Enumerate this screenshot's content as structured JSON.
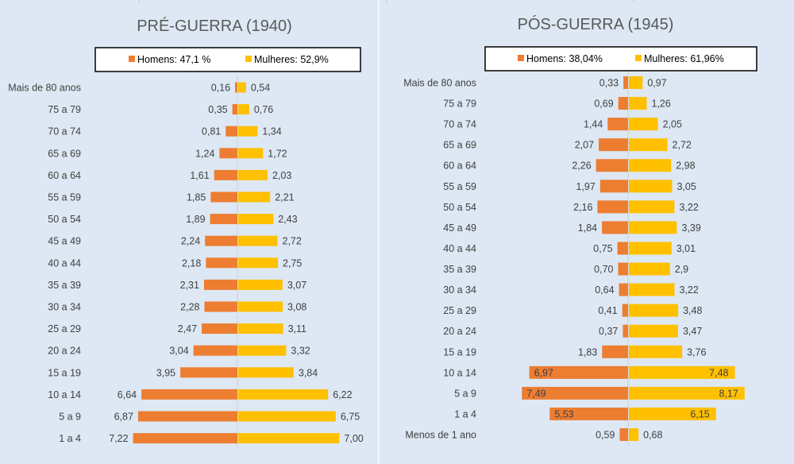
{
  "colors": {
    "men": "#ed7d31",
    "women": "#ffc000",
    "background": "#dde8f4",
    "axis": "#d0d0d0"
  },
  "chart_data": [
    {
      "type": "bar",
      "orientation": "horizontal-pyramid",
      "title": "PRÉ-GUERRA (1940)",
      "legend_position": "top",
      "grid": false,
      "categories": [
        "Mais de 80 anos",
        "75 a 79",
        "70 a 74",
        "65 a 69",
        "60 a 64",
        "55 a 59",
        "50 a 54",
        "45 a 49",
        "40 a 44",
        "35 a 39",
        "30 a 34",
        "25 a 29",
        "20 a 24",
        "15 a 19",
        "10 a 14",
        "5 a 9",
        "1 a 4"
      ],
      "series": [
        {
          "name": "Homens: 47,1 %",
          "values": [
            0.16,
            0.35,
            0.81,
            1.24,
            1.61,
            1.85,
            1.89,
            2.24,
            2.18,
            2.31,
            2.28,
            2.47,
            3.04,
            3.95,
            6.64,
            6.87,
            7.22
          ],
          "labels": [
            "0,16",
            "0,35",
            "0,81",
            "1,24",
            "1,61",
            "1,85",
            "1,89",
            "2,24",
            "2,18",
            "2,31",
            "2,28",
            "2,47",
            "3,04",
            "3,95",
            "6,64",
            "6,87",
            "7,22"
          ]
        },
        {
          "name": "Mulheres: 52,9%",
          "values": [
            0.54,
            0.76,
            1.34,
            1.72,
            2.03,
            2.21,
            2.43,
            2.72,
            2.75,
            3.07,
            3.08,
            3.11,
            3.32,
            3.84,
            6.22,
            6.75,
            7.0
          ],
          "labels": [
            "0,54",
            "0,76",
            "1,34",
            "1,72",
            "2,03",
            "2,21",
            "2,43",
            "2,72",
            "2,75",
            "3,07",
            "3,08",
            "3,11",
            "3,32",
            "3,84",
            "6,22",
            "6,75",
            "7,00"
          ]
        }
      ]
    },
    {
      "type": "bar",
      "orientation": "horizontal-pyramid",
      "title": "PÓS-GUERRA (1945)",
      "legend_position": "top",
      "grid": false,
      "categories": [
        "Mais de 80 anos",
        "75 a 79",
        "70 a 74",
        "65 a 69",
        "60 a 64",
        "55 a 59",
        "50 a 54",
        "45 a 49",
        "40 a 44",
        "35 a 39",
        "30 a 34",
        "25 a 29",
        "20 a 24",
        "15 a 19",
        "10 a 14",
        "5 a 9",
        "1 a 4",
        "Menos de 1 ano"
      ],
      "series": [
        {
          "name": "Homens: 38,04%",
          "values": [
            0.33,
            0.69,
            1.44,
            2.07,
            2.26,
            1.97,
            2.16,
            1.84,
            0.75,
            0.7,
            0.64,
            0.41,
            0.37,
            1.83,
            6.97,
            7.49,
            5.53,
            0.59
          ],
          "labels": [
            "0,33",
            "0,69",
            "1,44",
            "2,07",
            "2,26",
            "1,97",
            "2,16",
            "1,84",
            "0,75",
            "0,70",
            "0,64",
            "0,41",
            "0,37",
            "1,83",
            "6,97",
            "7,49",
            "5,53",
            "0,59"
          ]
        },
        {
          "name": "Mulheres: 61,96%",
          "values": [
            0.97,
            1.26,
            2.05,
            2.72,
            2.98,
            3.05,
            3.22,
            3.39,
            3.01,
            2.9,
            3.22,
            3.48,
            3.47,
            3.76,
            7.48,
            8.17,
            6.15,
            0.68
          ],
          "labels": [
            "0,97",
            "1,26",
            "2,05",
            "2,72",
            "2,98",
            "3,05",
            "3,22",
            "3,39",
            "3,01",
            "2,9",
            "3,22",
            "3,48",
            "3,47",
            "3,76",
            "7,48",
            "8,17",
            "6,15",
            "0,68"
          ]
        }
      ]
    }
  ]
}
